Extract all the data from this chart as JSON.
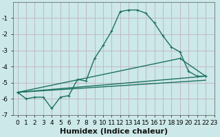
{
  "xlabel": "Humidex (Indice chaleur)",
  "background_color": "#cce8e8",
  "grid_color": "#c0b8c8",
  "line_color": "#1a7060",
  "xlim": [
    -0.5,
    23
  ],
  "ylim": [
    -7,
    0
  ],
  "xticks": [
    0,
    1,
    2,
    3,
    4,
    5,
    6,
    7,
    8,
    9,
    10,
    11,
    12,
    13,
    14,
    15,
    16,
    17,
    18,
    19,
    20,
    21,
    22,
    23
  ],
  "yticks": [
    -7,
    -6,
    -5,
    -4,
    -3,
    -2,
    -1
  ],
  "line1_x": [
    0,
    1,
    2,
    3,
    4,
    5,
    6,
    7,
    8,
    9,
    10,
    11,
    12,
    13,
    14,
    15,
    16,
    17,
    18,
    19,
    20,
    21,
    22
  ],
  "line1_y": [
    -5.6,
    -6.0,
    -5.9,
    -5.9,
    -6.6,
    -5.9,
    -5.8,
    -4.8,
    -4.9,
    -3.5,
    -2.7,
    -1.8,
    -0.6,
    -0.5,
    -0.5,
    -0.7,
    -1.3,
    -2.1,
    -2.8,
    -3.1,
    -4.3,
    -4.6,
    -4.6
  ],
  "line2_x": [
    0,
    22
  ],
  "line2_y": [
    -5.6,
    -4.6
  ],
  "line3_x": [
    0,
    22
  ],
  "line3_y": [
    -5.6,
    -4.85
  ],
  "line4_x": [
    0,
    19,
    22
  ],
  "line4_y": [
    -5.6,
    -3.5,
    -4.6
  ],
  "tick_fontsize": 6.5,
  "label_fontsize": 8
}
